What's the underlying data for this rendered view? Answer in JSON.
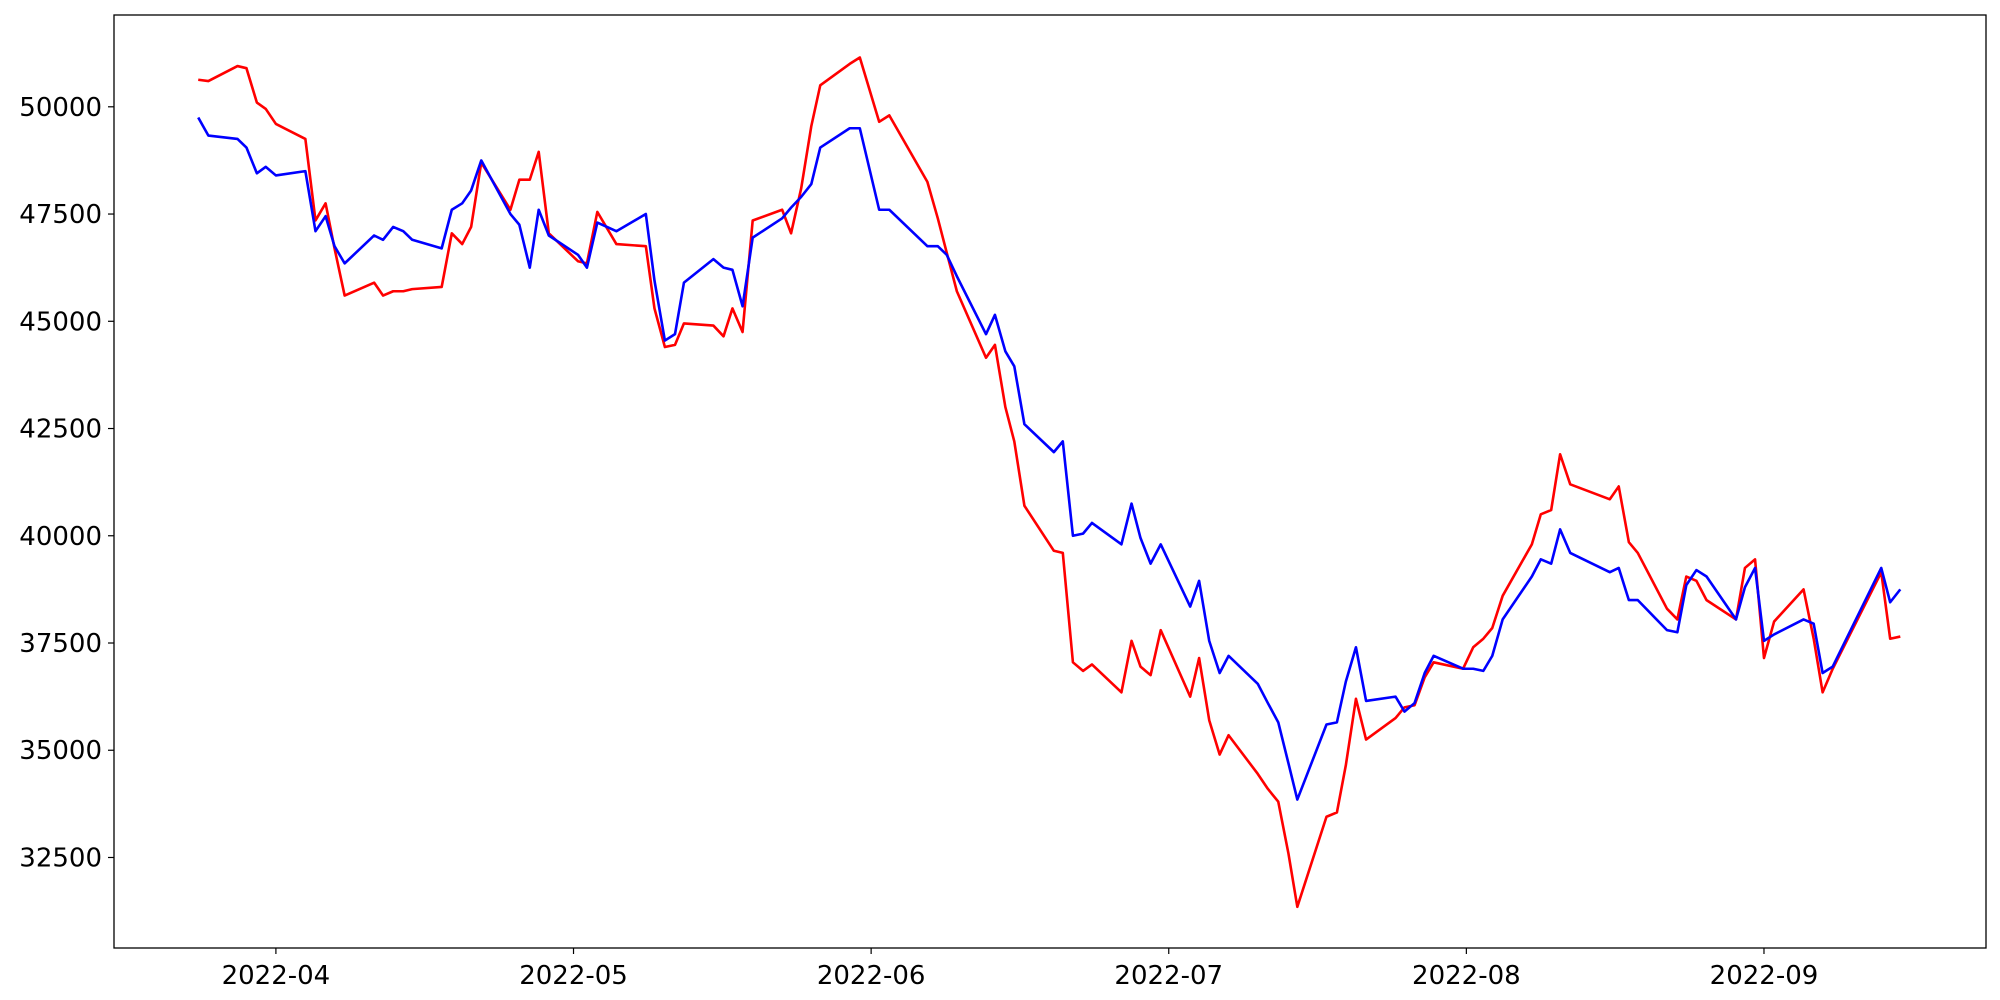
{
  "chart_data": {
    "type": "line",
    "x": [
      3.739,
      3.773,
      3.871,
      3.901,
      3.936,
      3.966,
      4.0,
      4.099,
      4.133,
      4.167,
      4.197,
      4.231,
      4.33,
      4.36,
      4.394,
      4.428,
      4.458,
      4.557,
      4.591,
      4.626,
      4.656,
      4.69,
      4.788,
      4.818,
      4.853,
      4.883,
      4.917,
      5.015,
      5.045,
      5.08,
      5.144,
      5.243,
      5.272,
      5.307,
      5.341,
      5.371,
      5.47,
      5.504,
      5.534,
      5.568,
      5.602,
      5.701,
      5.731,
      5.765,
      5.799,
      5.829,
      5.928,
      5.962,
      6.027,
      6.061,
      6.189,
      6.224,
      6.254,
      6.288,
      6.386,
      6.416,
      6.451,
      6.481,
      6.515,
      6.614,
      6.644,
      6.678,
      6.712,
      6.742,
      6.841,
      6.875,
      6.905,
      6.939,
      6.973,
      7.072,
      7.102,
      7.136,
      7.171,
      7.201,
      7.299,
      7.333,
      7.368,
      7.402,
      7.432,
      7.53,
      7.565,
      7.595,
      7.629,
      7.663,
      7.762,
      7.792,
      7.826,
      7.86,
      7.89,
      7.989,
      8.023,
      8.057,
      8.087,
      8.122,
      8.22,
      8.25,
      8.285,
      8.315,
      8.349,
      8.482,
      8.512,
      8.546,
      8.576,
      8.674,
      8.709,
      8.739,
      8.773,
      8.807,
      8.906,
      8.936,
      8.97,
      9.0,
      9.034,
      9.133,
      9.167,
      9.197,
      9.231,
      9.394,
      9.424,
      9.458
    ],
    "series": [
      {
        "color": "#ff0000",
        "values": [
          50630,
          50600,
          50950,
          50900,
          50100,
          49950,
          49600,
          49250,
          47350,
          47750,
          46700,
          45600,
          45900,
          45600,
          45700,
          45700,
          45750,
          45800,
          47050,
          46800,
          47200,
          48700,
          47600,
          48300,
          48300,
          48950,
          47050,
          46400,
          46350,
          47550,
          46800,
          46750,
          45300,
          44400,
          44450,
          44950,
          44900,
          44650,
          45300,
          44750,
          47350,
          47600,
          47050,
          48100,
          49550,
          50500,
          51000,
          51150,
          49650,
          49800,
          48250,
          47400,
          46600,
          45700,
          44150,
          44450,
          43000,
          42200,
          40700,
          39650,
          39600,
          37050,
          36850,
          37000,
          36350,
          37550,
          36950,
          36750,
          37800,
          36250,
          37150,
          35700,
          34900,
          35350,
          34450,
          34100,
          33800,
          32600,
          31350,
          33450,
          33550,
          34650,
          36200,
          35250,
          35750,
          36000,
          36050,
          36700,
          37050,
          36900,
          37400,
          37600,
          37850,
          38600,
          39800,
          40500,
          40600,
          41900,
          41200,
          40850,
          41150,
          39850,
          39600,
          38300,
          38050,
          39050,
          38950,
          38500,
          38050,
          39250,
          39450,
          37150,
          38000,
          38750,
          37600,
          36350,
          36900,
          39150,
          37600,
          37650
        ]
      },
      {
        "color": "#0000ff",
        "values": [
          49750,
          49330,
          49250,
          49050,
          48450,
          48600,
          48400,
          48500,
          47100,
          47450,
          46750,
          46350,
          47000,
          46900,
          47200,
          47100,
          46900,
          46700,
          47600,
          47750,
          48050,
          48750,
          47500,
          47250,
          46250,
          47600,
          47000,
          46550,
          46250,
          47300,
          47100,
          47500,
          45950,
          44550,
          44700,
          45900,
          46450,
          46250,
          46200,
          45350,
          46950,
          47400,
          47650,
          47900,
          48200,
          49050,
          49500,
          49500,
          47600,
          47600,
          46750,
          46750,
          46550,
          46050,
          44700,
          45150,
          44300,
          43950,
          42600,
          41950,
          42200,
          40000,
          40050,
          40300,
          39800,
          40750,
          39950,
          39350,
          39800,
          38350,
          38950,
          37550,
          36800,
          37200,
          36550,
          36100,
          35650,
          34700,
          33850,
          35600,
          35650,
          36600,
          37400,
          36150,
          36250,
          35900,
          36100,
          36800,
          37200,
          36900,
          36900,
          36850,
          37200,
          38050,
          39050,
          39450,
          39350,
          40150,
          39600,
          39150,
          39250,
          38500,
          38500,
          37800,
          37750,
          38850,
          39200,
          39050,
          38050,
          38800,
          39250,
          37550,
          37700,
          38050,
          37950,
          36800,
          36950,
          39250,
          38450,
          38750
        ]
      }
    ],
    "xlim": [
      3.456,
      9.746
    ],
    "xticks": [
      {
        "value": 4,
        "label": "2022-04"
      },
      {
        "value": 5,
        "label": "2022-05"
      },
      {
        "value": 6,
        "label": "2022-06"
      },
      {
        "value": 7,
        "label": "2022-07"
      },
      {
        "value": 8,
        "label": "2022-08"
      },
      {
        "value": 9,
        "label": "2022-09"
      }
    ],
    "ylim": [
      30390,
      52140
    ],
    "yticks": [
      32500,
      35000,
      37500,
      40000,
      42500,
      45000,
      47500,
      50000
    ],
    "grid": false
  }
}
